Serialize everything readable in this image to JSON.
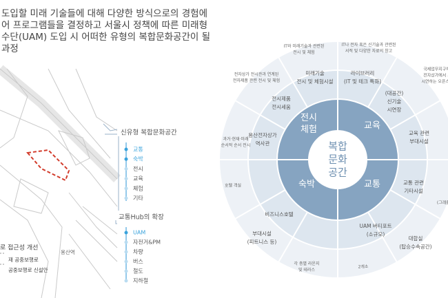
{
  "intro": [
    "도입할 미래 기술들에 대해 다양한 방식으로의 경험에",
    "어 프로그램들을 결정하고 서울시 정책에 따른 미래형",
    "수단(UAM) 도입 시 어떠한 유형의 복합문화공간이 될",
    "과정"
  ],
  "map": {
    "station": "용산역"
  },
  "panel1": {
    "title": "신유형 복합문화공간",
    "items": [
      "교통",
      "숙박",
      "전시",
      "교육",
      "체험",
      "기타"
    ]
  },
  "panel2": {
    "title": "교통Hub의 확장",
    "items": [
      "UAM",
      "자전거&PM",
      "차량",
      "버스",
      "철도",
      "지하철"
    ]
  },
  "access": [
    "로 접근성 개선",
    "재 공중보행로",
    "공중보행로 신설안"
  ],
  "diagram": {
    "center": [
      "복합",
      "문화",
      "공간"
    ],
    "inner": [
      [
        "전시",
        "체험"
      ],
      [
        "교육"
      ],
      [
        "숙박"
      ],
      [
        "교통"
      ]
    ],
    "middle": [
      [
        "미래기술",
        "전시 및 체험시설"
      ],
      [
        "라이브러리",
        "(IT 및 테크 특화)"
      ],
      [
        "전시제품",
        "전시세움"
      ],
      [
        "(대공간)",
        "신기술",
        "시연장"
      ],
      [
        "용산전자상가",
        "역사관"
      ],
      [
        "교육 관련",
        "부대시설"
      ],
      [
        "교통 관련",
        "기타시설"
      ],
      [
        "비즈니스호텔"
      ],
      [
        "UAM 버티포트",
        "(소규모)"
      ],
      [
        "대합실",
        "(탑승수속공간)"
      ],
      [
        "부대시설",
        "(피트니스 등)"
      ]
    ],
    "outer": [
      [
        "IT와 미래기술과 관련된",
        "전시 및 체험"
      ],
      [
        "IT나 전자 혹은 신기술과 관련된",
        "서적 및 다양한 자료의 창고"
      ],
      [
        "전자상가 전시관과 연계된",
        "전자제품 관련 전시 및 체험"
      ],
      [
        "국제업무지구에서 나",
        "전자상가에서 시제품",
        "시연하는 오픈스페이스"
      ],
      [
        "과거·현재·미래",
        "순서적 순서 전시"
      ],
      [
        "호텔 객실"
      ],
      [
        "(그래출, 약"
      ],
      [
        "각 층별 라운지",
        "및 테라스"
      ],
      [
        "2개소"
      ]
    ]
  }
}
